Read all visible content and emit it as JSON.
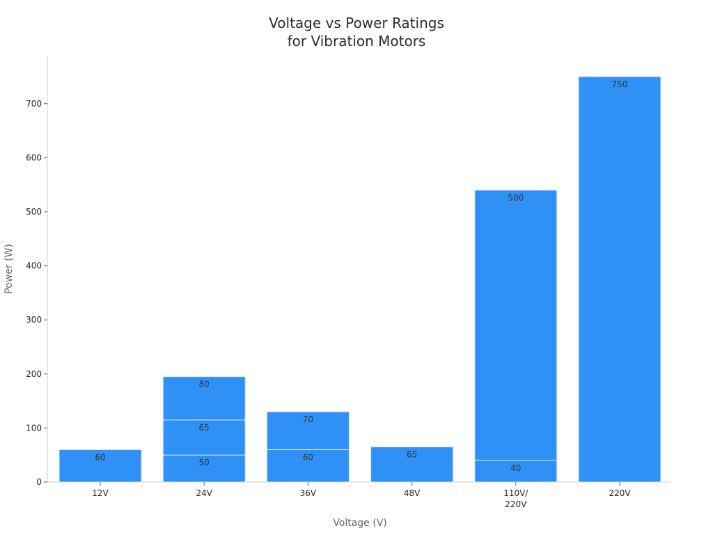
{
  "chart_data": {
    "type": "bar",
    "stacked": true,
    "title": [
      "Voltage vs Power Ratings",
      "for Vibration Motors"
    ],
    "xlabel": "Voltage (V)",
    "ylabel": "Power (W)",
    "ylim": [
      0,
      790
    ],
    "yticks": [
      0,
      100,
      200,
      300,
      400,
      500,
      600,
      700
    ],
    "categories": [
      {
        "label": [
          "12V"
        ],
        "segments": [
          60
        ]
      },
      {
        "label": [
          "24V"
        ],
        "segments": [
          50,
          65,
          80
        ]
      },
      {
        "label": [
          "36V"
        ],
        "segments": [
          60,
          70
        ]
      },
      {
        "label": [
          "48V"
        ],
        "segments": [
          65
        ]
      },
      {
        "label": [
          "110V/",
          "220V"
        ],
        "segments": [
          40,
          500
        ]
      },
      {
        "label": [
          "220V"
        ],
        "segments": [
          750
        ]
      }
    ],
    "bar_color": "#2f91f5",
    "grid": false
  }
}
